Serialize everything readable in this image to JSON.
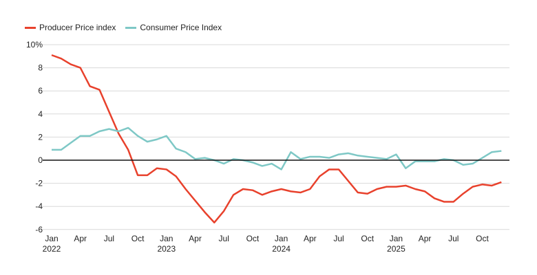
{
  "chart_data": {
    "type": "line",
    "title": "",
    "xlabel": "",
    "ylabel": "",
    "ylim": [
      -6,
      10
    ],
    "yticks": [
      10,
      8,
      6,
      4,
      2,
      0,
      -2,
      -4,
      -6
    ],
    "ytick_labels": [
      "10%",
      "8",
      "6",
      "4",
      "2",
      "0",
      "-2",
      "-4",
      "-6"
    ],
    "grid": true,
    "legend_placement": "top-left",
    "x_start": "Jan 2022",
    "x_end": "Dec 2025",
    "xticks": [
      {
        "index": 0,
        "label": "Jan",
        "year": "2022"
      },
      {
        "index": 3,
        "label": "Apr"
      },
      {
        "index": 6,
        "label": "Jul"
      },
      {
        "index": 9,
        "label": "Oct"
      },
      {
        "index": 12,
        "label": "Jan",
        "year": "2023"
      },
      {
        "index": 15,
        "label": "Apr"
      },
      {
        "index": 18,
        "label": "Jul"
      },
      {
        "index": 21,
        "label": "Oct"
      },
      {
        "index": 24,
        "label": "Jan",
        "year": "2024"
      },
      {
        "index": 27,
        "label": "Apr"
      },
      {
        "index": 30,
        "label": "Jul"
      },
      {
        "index": 33,
        "label": "Oct"
      },
      {
        "index": 36,
        "label": "Jan",
        "year": "2025"
      },
      {
        "index": 39,
        "label": "Apr"
      },
      {
        "index": 42,
        "label": "Jul"
      },
      {
        "index": 45,
        "label": "Oct"
      }
    ],
    "series": [
      {
        "name": "Producer Price index",
        "color": "#e8412c",
        "values": [
          9.1,
          8.8,
          8.3,
          8.0,
          6.4,
          6.1,
          4.2,
          2.3,
          0.9,
          -1.3,
          -1.3,
          -0.7,
          -0.8,
          -1.4,
          -2.5,
          -3.5,
          -4.5,
          -5.4,
          -4.4,
          -3.0,
          -2.5,
          -2.6,
          -3.0,
          -2.7,
          -2.5,
          -2.7,
          -2.8,
          -2.5,
          -1.4,
          -0.8,
          -0.8,
          -1.8,
          -2.8,
          -2.9,
          -2.5,
          -2.3,
          -2.3,
          -2.2,
          -2.5,
          -2.7,
          -3.3,
          -3.6,
          -3.6,
          -2.9,
          -2.3,
          -2.1,
          -2.2,
          -1.9
        ]
      },
      {
        "name": "Consumer Price Index",
        "color": "#7ec8c6",
        "values": [
          0.9,
          0.9,
          1.5,
          2.1,
          2.1,
          2.5,
          2.7,
          2.5,
          2.8,
          2.1,
          1.6,
          1.8,
          2.1,
          1.0,
          0.7,
          0.1,
          0.2,
          0.0,
          -0.3,
          0.1,
          0.0,
          -0.2,
          -0.5,
          -0.3,
          -0.8,
          0.7,
          0.1,
          0.3,
          0.3,
          0.2,
          0.5,
          0.6,
          0.4,
          0.3,
          0.2,
          0.1,
          0.5,
          -0.7,
          -0.1,
          -0.1,
          -0.1,
          0.1,
          0.0,
          -0.4,
          -0.3,
          0.2,
          0.7,
          0.8
        ]
      }
    ]
  }
}
